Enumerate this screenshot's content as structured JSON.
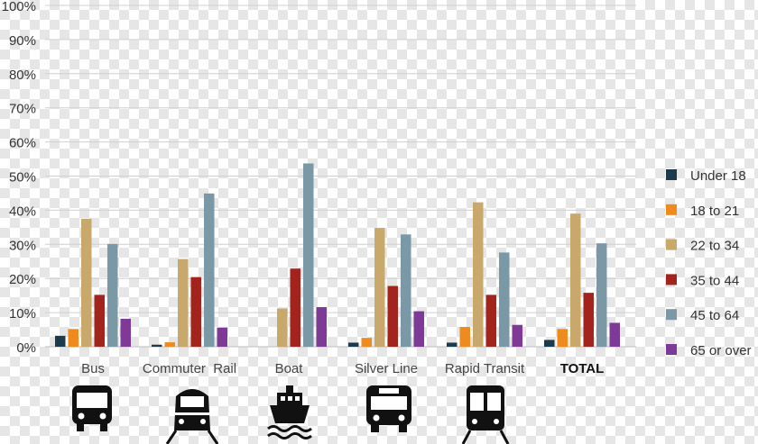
{
  "chart_data": {
    "type": "bar",
    "title": "",
    "xlabel": "",
    "ylabel": "",
    "ylim": [
      0,
      100
    ],
    "y_ticks": [
      "0%",
      "10%",
      "20%",
      "30%",
      "40%",
      "50%",
      "60%",
      "70%",
      "80%",
      "90%",
      "100%"
    ],
    "grid": true,
    "legend_position": "right",
    "categories": [
      "Bus",
      "Commuter  Rail",
      "Boat",
      "Silver Line",
      "Rapid Transit",
      "TOTAL"
    ],
    "category_icons": [
      "bus-icon",
      "commuter-rail-train-icon",
      "ferry-boat-icon",
      "silver-line-bus-icon",
      "rapid-transit-subway-icon",
      ""
    ],
    "series": [
      {
        "name": "Under 18",
        "color": "#1b3a4b",
        "values": [
          3.2,
          0.6,
          0,
          1.2,
          1.2,
          2
        ]
      },
      {
        "name": "18 to 21",
        "color": "#ef8a1e",
        "values": [
          5.2,
          1.3,
          0,
          2.6,
          5.8,
          5.2
        ]
      },
      {
        "name": "22 to 34",
        "color": "#c9a86c",
        "values": [
          37.5,
          25.7,
          11.2,
          34.8,
          42.3,
          39
        ]
      },
      {
        "name": "35 to 44",
        "color": "#a3231d",
        "values": [
          15.2,
          20.4,
          22.9,
          17.8,
          15.2,
          15.8
        ]
      },
      {
        "name": "45 to 64",
        "color": "#7a98a6",
        "values": [
          30.1,
          44.9,
          53.7,
          32.9,
          27.6,
          30.3
        ]
      },
      {
        "name": "65 or over",
        "color": "#7e3a96",
        "values": [
          8.2,
          5.6,
          11.6,
          10.4,
          6.4,
          7
        ]
      }
    ]
  }
}
